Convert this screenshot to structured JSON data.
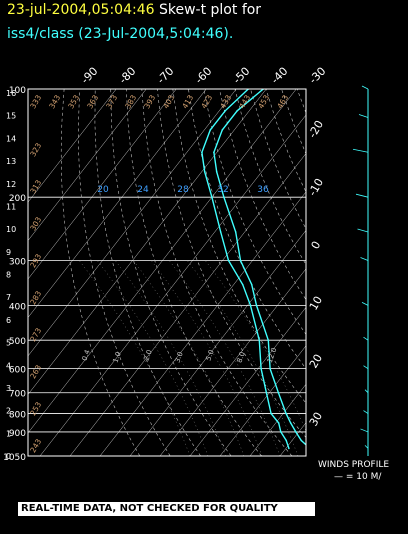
{
  "title": {
    "datetime": "23-jul-2004,05:04:46",
    "label": "Skew-t plot for",
    "station": "iss4/class (23-Jul-2004,5:04:46)"
  },
  "disclaimer": "REAL-TIME DATA, NOT CHECKED FOR QUALITY",
  "wind_profile": {
    "title": "WINDS PROFILE",
    "scale": "— = 10 M/"
  },
  "colors": {
    "background": "#000000",
    "frame": "#ffffff",
    "trace": "#40ffff",
    "title_date": "#ffff40",
    "theta": "#d2a070"
  },
  "chart_data": {
    "type": "line",
    "title": "Skew-t plot for iss4/class (23-Jul-2004,5:04:46)",
    "pressure_ticks": [
      100,
      200,
      300,
      400,
      500,
      600,
      700,
      800,
      900,
      1050
    ],
    "height_ticks_km": [
      0,
      1,
      2,
      3,
      4,
      5,
      6,
      7,
      8,
      9,
      10,
      11,
      12,
      13,
      14,
      15,
      16
    ],
    "top_temp_ticks": [
      "-90",
      "-80",
      "-70",
      "-60",
      "-50",
      "-40",
      "-30"
    ],
    "right_temp_ticks": [
      "-20",
      "-10",
      "0",
      "10",
      "20",
      "30"
    ],
    "mixing_ratio_labels": [
      "20",
      "24",
      "28",
      "32",
      "36"
    ],
    "theta_labels": [
      "243",
      "253",
      "263",
      "273",
      "283",
      "293",
      "303",
      "313",
      "323",
      "333",
      "343",
      "353",
      "363",
      "373",
      "383",
      "393",
      "403",
      "413",
      "423",
      "433",
      "443",
      "453",
      "463"
    ],
    "mixratio_low_labels": [
      "0.4",
      "1.0",
      "2.0",
      "3.0",
      "5.0",
      "8.0",
      "12.0"
    ],
    "ylim_hpa": [
      1050,
      100
    ],
    "y_scale": "log",
    "xlim_degC": [
      -90,
      30
    ],
    "series": [
      {
        "points": [
          {
            "p": 100,
            "t": -81
          },
          {
            "p": 115,
            "t": -84
          },
          {
            "p": 130,
            "t": -84
          },
          {
            "p": 150,
            "t": -81
          },
          {
            "p": 170,
            "t": -75
          },
          {
            "p": 200,
            "t": -66
          },
          {
            "p": 250,
            "t": -53
          },
          {
            "p": 300,
            "t": -44
          },
          {
            "p": 350,
            "t": -34
          },
          {
            "p": 400,
            "t": -27
          },
          {
            "p": 500,
            "t": -14
          },
          {
            "p": 600,
            "t": -6
          },
          {
            "p": 700,
            "t": 3
          },
          {
            "p": 800,
            "t": 11
          },
          {
            "p": 850,
            "t": 15
          },
          {
            "p": 900,
            "t": 19
          },
          {
            "p": 950,
            "t": 23
          },
          {
            "p": 1000,
            "t": 28
          }
        ]
      },
      {
        "points": [
          {
            "p": 100,
            "t": -86
          },
          {
            "p": 115,
            "t": -88
          },
          {
            "p": 130,
            "t": -88
          },
          {
            "p": 150,
            "t": -85
          },
          {
            "p": 170,
            "t": -79
          },
          {
            "p": 200,
            "t": -70
          },
          {
            "p": 250,
            "t": -58
          },
          {
            "p": 300,
            "t": -48
          },
          {
            "p": 350,
            "t": -37
          },
          {
            "p": 400,
            "t": -29
          },
          {
            "p": 500,
            "t": -17
          },
          {
            "p": 600,
            "t": -9
          },
          {
            "p": 700,
            "t": -1
          },
          {
            "p": 800,
            "t": 6
          },
          {
            "p": 850,
            "t": 11
          },
          {
            "p": 900,
            "t": 14
          },
          {
            "p": 950,
            "t": 18
          },
          {
            "p": 1000,
            "t": 21
          }
        ]
      }
    ],
    "wind_profile_barbs": [
      {
        "p": 100,
        "spd": 4
      },
      {
        "p": 120,
        "spd": 6
      },
      {
        "p": 150,
        "spd": 10
      },
      {
        "p": 200,
        "spd": 8
      },
      {
        "p": 250,
        "spd": 7
      },
      {
        "p": 300,
        "spd": 5
      },
      {
        "p": 400,
        "spd": 4
      },
      {
        "p": 500,
        "spd": 3
      },
      {
        "p": 600,
        "spd": 3
      },
      {
        "p": 700,
        "spd": 2
      },
      {
        "p": 800,
        "spd": 3
      },
      {
        "p": 900,
        "spd": 5
      },
      {
        "p": 1000,
        "spd": 2
      }
    ]
  }
}
